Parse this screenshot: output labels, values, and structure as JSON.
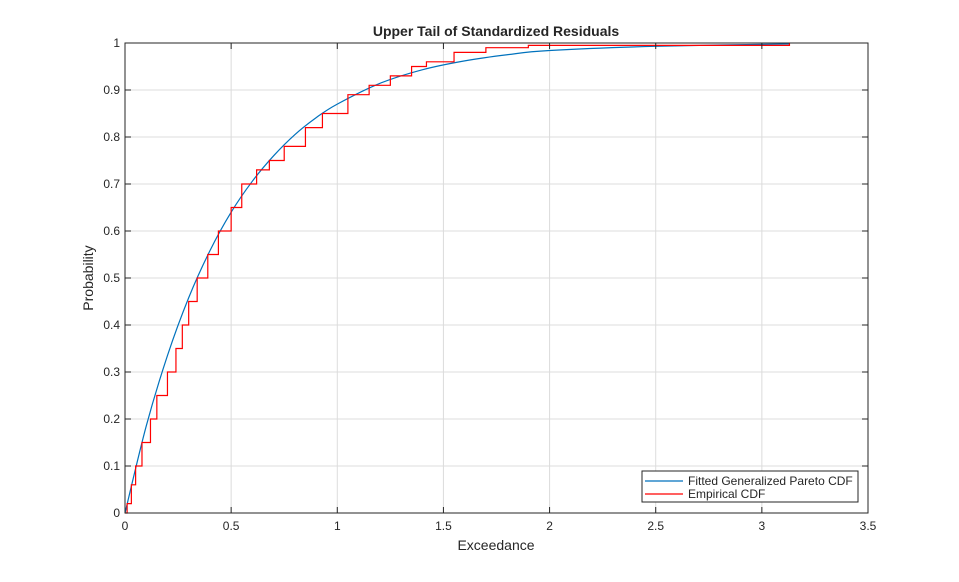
{
  "chart_data": {
    "type": "line",
    "title": "Upper Tail of Standardized Residuals",
    "xlabel": "Exceedance",
    "ylabel": "Probability",
    "xlim": [
      0,
      3.5
    ],
    "ylim": [
      0,
      1
    ],
    "xticks": [
      "0",
      "0.5",
      "1",
      "1.5",
      "2",
      "2.5",
      "3",
      "3.5"
    ],
    "yticks": [
      "0",
      "0.1",
      "0.2",
      "0.3",
      "0.4",
      "0.5",
      "0.6",
      "0.7",
      "0.8",
      "0.9",
      "1"
    ],
    "grid": true,
    "legend_position": "bottom-right",
    "series": [
      {
        "name": "Fitted Generalized Pareto CDF",
        "color": "#0072BD",
        "style": "line",
        "x": [
          0,
          0.1,
          0.2,
          0.3,
          0.4,
          0.5,
          0.6,
          0.7,
          0.8,
          0.9,
          1.0,
          1.2,
          1.4,
          1.6,
          1.8,
          2.0,
          2.5,
          3.13
        ],
        "y": [
          0,
          0.185,
          0.335,
          0.458,
          0.558,
          0.64,
          0.706,
          0.76,
          0.805,
          0.841,
          0.87,
          0.914,
          0.943,
          0.962,
          0.975,
          0.984,
          0.993,
          0.998
        ]
      },
      {
        "name": "Empirical CDF",
        "color": "#FF0000",
        "style": "stairs",
        "x": [
          0,
          0.01,
          0.03,
          0.05,
          0.08,
          0.12,
          0.15,
          0.2,
          0.24,
          0.27,
          0.3,
          0.34,
          0.39,
          0.44,
          0.5,
          0.55,
          0.62,
          0.68,
          0.75,
          0.85,
          0.93,
          1.05,
          1.15,
          1.25,
          1.35,
          1.42,
          1.55,
          1.7,
          1.9,
          3.13
        ],
        "y": [
          0,
          0.02,
          0.06,
          0.1,
          0.15,
          0.2,
          0.25,
          0.3,
          0.35,
          0.4,
          0.45,
          0.5,
          0.55,
          0.6,
          0.65,
          0.7,
          0.73,
          0.75,
          0.78,
          0.82,
          0.85,
          0.89,
          0.91,
          0.93,
          0.95,
          0.96,
          0.98,
          0.99,
          0.995,
          1.0
        ]
      }
    ]
  }
}
